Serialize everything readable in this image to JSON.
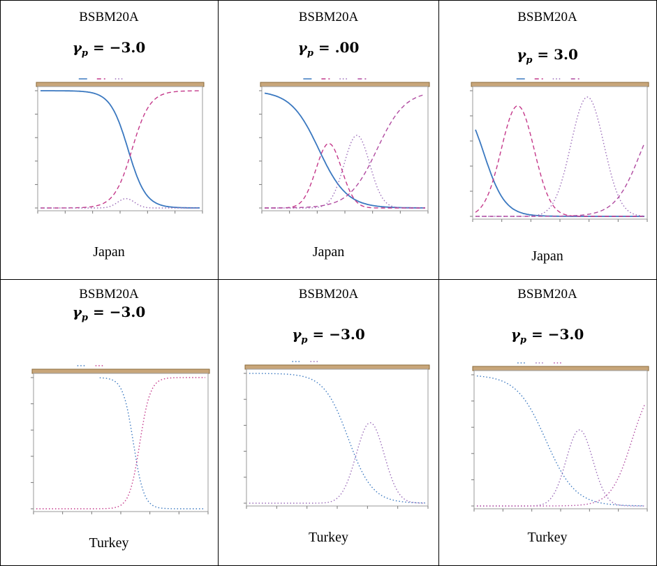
{
  "panels": [
    {
      "code": "BSBM20A",
      "gamma_symbol": "γ",
      "gamma_sub": "p",
      "gamma_value": "−3.0",
      "country": "Japan"
    },
    {
      "code": "BSBM20A",
      "gamma_symbol": "γ",
      "gamma_sub": "p",
      "gamma_value": ".00",
      "country": "Japan"
    },
    {
      "code": "BSBM20A",
      "gamma_symbol": "γ",
      "gamma_sub": "p",
      "gamma_value": "3.0",
      "country": "Japan"
    },
    {
      "code": "BSBM20A",
      "gamma_symbol": "γ",
      "gamma_sub": "p",
      "gamma_value": "−3.0",
      "country": "Turkey"
    },
    {
      "code": "BSBM20A",
      "gamma_symbol": "γ",
      "gamma_sub": "p",
      "gamma_value": "−3.0",
      "country": "Turkey"
    },
    {
      "code": "BSBM20A",
      "gamma_symbol": "γ",
      "gamma_sub": "p",
      "gamma_value": "−3.0",
      "country": "Turkey"
    }
  ],
  "colors": {
    "strip": "#c8a67a",
    "strip_border": "#8a6a3a",
    "cat1": "#3a78c0",
    "cat2": "#c4388a",
    "cat3": "#9a6ab8",
    "cat4": "#b04aa0",
    "frame": "#9a9a9a"
  },
  "chart_data": [
    {
      "type": "line",
      "x_range": [
        -4,
        4
      ],
      "y_range": [
        0,
        1
      ],
      "series": [
        {
          "kind": "logistic_dec",
          "center": 0.4,
          "scale": 0.45,
          "style": "solid",
          "color": "cat1"
        },
        {
          "kind": "logistic_inc",
          "center": 0.6,
          "scale": 0.45,
          "style": "dashed",
          "color": "cat2"
        },
        {
          "kind": "bump",
          "center": 0.3,
          "width": 0.6,
          "height": 0.08,
          "style": "dotted",
          "color": "cat3"
        }
      ]
    },
    {
      "type": "line",
      "x_range": [
        -4,
        4
      ],
      "y_range": [
        0,
        1
      ],
      "series": [
        {
          "kind": "logistic_dec",
          "center": -1.3,
          "scale": 0.7,
          "style": "solid",
          "color": "cat1"
        },
        {
          "kind": "bump",
          "center": -0.8,
          "width": 0.9,
          "height": 0.55,
          "style": "dashed",
          "color": "cat2"
        },
        {
          "kind": "bump",
          "center": 0.6,
          "width": 0.9,
          "height": 0.62,
          "style": "dotted",
          "color": "cat3"
        },
        {
          "kind": "logistic_inc",
          "center": 1.6,
          "scale": 0.7,
          "style": "dashed",
          "color": "cat4"
        }
      ]
    },
    {
      "type": "line",
      "x_range": [
        -4,
        4
      ],
      "y_range": [
        0,
        1
      ],
      "series": [
        {
          "kind": "logistic_dec",
          "center": -3.6,
          "scale": 0.5,
          "style": "solid",
          "color": "cat1"
        },
        {
          "kind": "bump",
          "center": -2.0,
          "width": 1.1,
          "height": 0.88,
          "style": "dashed",
          "color": "cat2"
        },
        {
          "kind": "bump",
          "center": 1.3,
          "width": 1.1,
          "height": 0.95,
          "style": "dotted",
          "color": "cat3"
        },
        {
          "kind": "logistic_inc",
          "center": 3.8,
          "scale": 0.6,
          "style": "dashed",
          "color": "cat4"
        }
      ]
    },
    {
      "type": "line",
      "x_range": [
        -4,
        4
      ],
      "y_range": [
        0,
        1
      ],
      "series": [
        {
          "kind": "logistic_dec",
          "center": 0.6,
          "scale": 0.25,
          "start": -1.0,
          "style": "dotted",
          "color": "cat1"
        },
        {
          "kind": "logistic_inc",
          "center": 0.9,
          "scale": 0.25,
          "style": "dotted",
          "color": "cat2"
        }
      ]
    },
    {
      "type": "line",
      "x_range": [
        -4,
        4
      ],
      "y_range": [
        0,
        1
      ],
      "series": [
        {
          "kind": "logistic_dec",
          "center": 0.5,
          "scale": 0.55,
          "style": "dotted",
          "color": "cat1"
        },
        {
          "kind": "bump",
          "center": 1.5,
          "width": 0.9,
          "height": 0.62,
          "style": "dotted",
          "color": "cat3"
        }
      ]
    },
    {
      "type": "line",
      "x_range": [
        -4,
        4
      ],
      "y_range": [
        0,
        1
      ],
      "series": [
        {
          "kind": "logistic_dec",
          "center": -0.7,
          "scale": 0.7,
          "style": "dotted",
          "color": "cat1"
        },
        {
          "kind": "bump",
          "center": 0.9,
          "width": 0.9,
          "height": 0.58,
          "style": "dotted",
          "color": "cat3"
        },
        {
          "kind": "logistic_inc",
          "center": 3.4,
          "scale": 0.5,
          "style": "dotted",
          "color": "cat4"
        }
      ]
    }
  ]
}
